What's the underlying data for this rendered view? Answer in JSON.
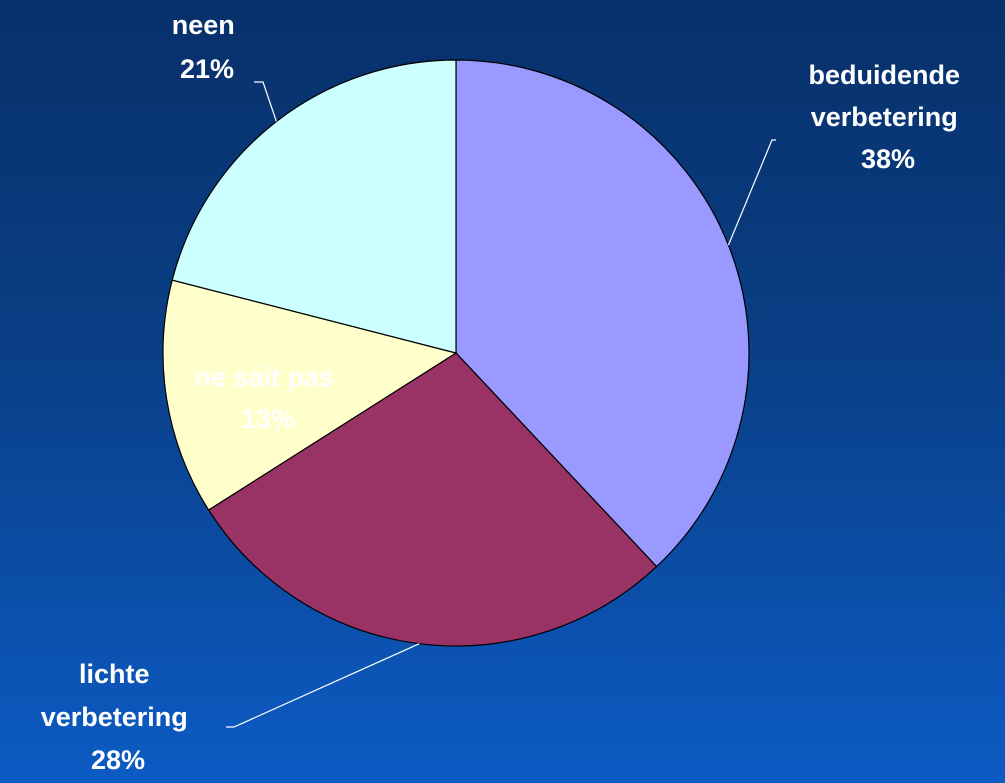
{
  "chart_data": {
    "type": "pie",
    "slices": [
      {
        "label_lines": [
          "beduidende",
          "verbetering"
        ],
        "percent_label": "38%",
        "value": 38,
        "color": "#9999ff",
        "label_color": "#ffffff"
      },
      {
        "label_lines": [
          "lichte",
          "verbetering"
        ],
        "percent_label": "28%",
        "value": 28,
        "color": "#993366",
        "label_color": "#ffffff"
      },
      {
        "label_lines": [
          "ne sait pas"
        ],
        "percent_label": "13%",
        "value": 13,
        "color": "#ffffcc",
        "label_color": "#ffffff"
      },
      {
        "label_lines": [
          "neen"
        ],
        "percent_label": "21%",
        "value": 21,
        "color": "#ccffff",
        "label_color": "#ffffff"
      }
    ]
  }
}
